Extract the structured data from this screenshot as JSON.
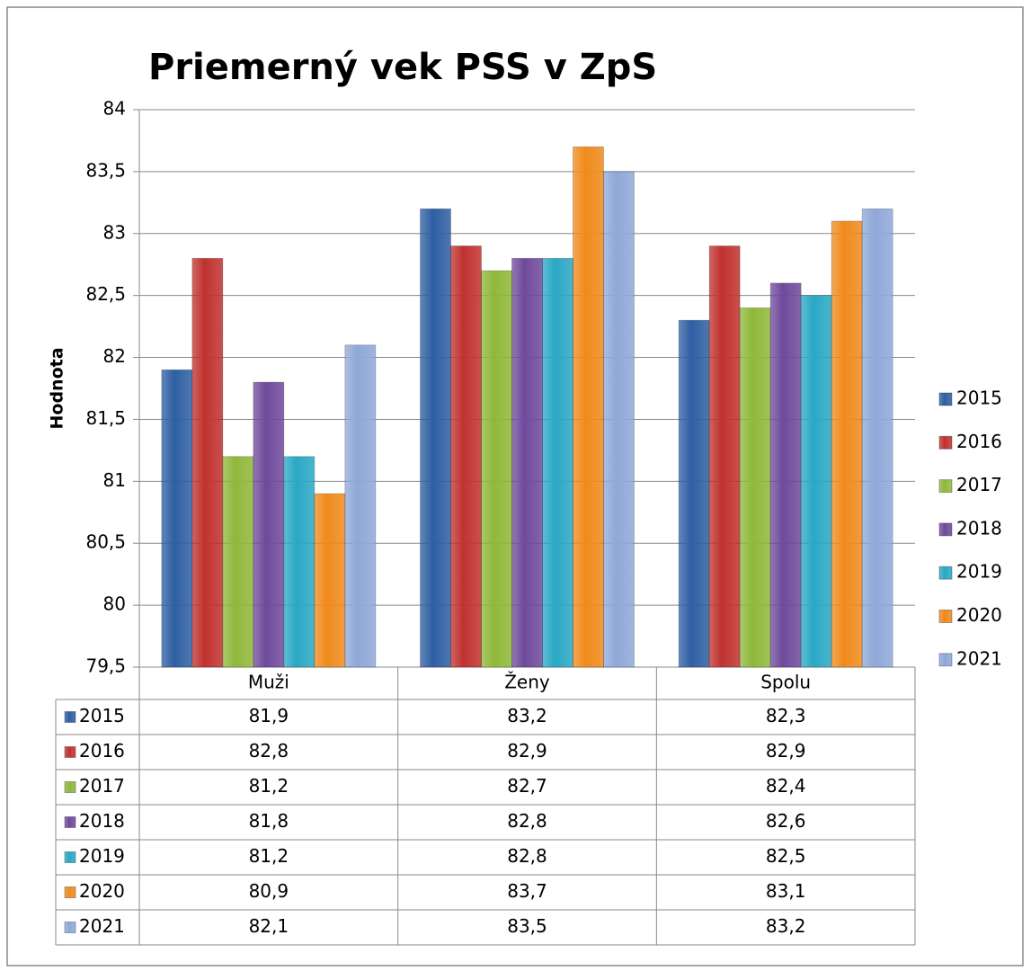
{
  "chart_data": {
    "type": "bar",
    "title": "Priemerný vek PSS v ZpS",
    "y_label": "Hodnota",
    "categories": [
      "Muži",
      "Ženy",
      "Spolu"
    ],
    "series": [
      {
        "name": "2015",
        "color": "#2e5fa3",
        "values": [
          81.9,
          83.2,
          82.3
        ],
        "value_labels": [
          "81,9",
          "83,2",
          "82,3"
        ]
      },
      {
        "name": "2016",
        "color": "#c0322f",
        "values": [
          82.8,
          82.9,
          82.9
        ],
        "value_labels": [
          "82,8",
          "82,9",
          "82,9"
        ]
      },
      {
        "name": "2017",
        "color": "#8fb83a",
        "values": [
          81.2,
          82.7,
          82.4
        ],
        "value_labels": [
          "81,2",
          "82,7",
          "82,4"
        ]
      },
      {
        "name": "2018",
        "color": "#6f4a9c",
        "values": [
          81.8,
          82.8,
          82.6
        ],
        "value_labels": [
          "81,8",
          "82,8",
          "82,6"
        ]
      },
      {
        "name": "2019",
        "color": "#2aa8c4",
        "values": [
          81.2,
          82.8,
          82.5
        ],
        "value_labels": [
          "81,2",
          "82,8",
          "82,5"
        ]
      },
      {
        "name": "2020",
        "color": "#f08a1c",
        "values": [
          80.9,
          83.7,
          83.1
        ],
        "value_labels": [
          "80,9",
          "83,7",
          "83,1"
        ]
      },
      {
        "name": "2021",
        "color": "#8fa8d8",
        "values": [
          82.1,
          83.5,
          83.2
        ],
        "value_labels": [
          "82,1",
          "83,5",
          "83,2"
        ]
      }
    ],
    "ylim": [
      79.5,
      84
    ],
    "yticks": [
      {
        "value": 79.5,
        "label": "79,5"
      },
      80,
      {
        "value": 80.5,
        "label": "80,5"
      },
      81,
      {
        "value": 81.5,
        "label": "81,5"
      },
      82,
      {
        "value": 82.5,
        "label": "82,5"
      },
      83,
      {
        "value": 83.5,
        "label": "83,5"
      },
      84
    ],
    "grid": true,
    "legend": "right"
  }
}
